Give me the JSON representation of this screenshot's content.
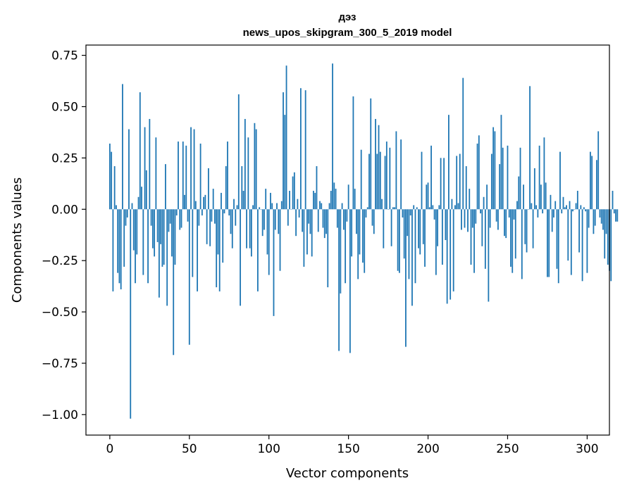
{
  "chart_data": {
    "type": "bar",
    "title_lines": [
      "дэз",
      "news_upos_skipgram_300_5_2019 model"
    ],
    "xlabel": "Vector components",
    "ylabel": "Components values",
    "xlim": [
      -15,
      314
    ],
    "ylim": [
      -1.1,
      0.8
    ],
    "x_ticks": [
      0,
      50,
      100,
      150,
      200,
      250,
      300
    ],
    "x_tick_labels": [
      "0",
      "50",
      "100",
      "150",
      "200",
      "250",
      "300"
    ],
    "y_ticks": [
      0.75,
      0.5,
      0.25,
      0.0,
      -0.25,
      -0.5,
      -0.75,
      -1.0
    ],
    "y_tick_labels": [
      "0.75",
      "0.50",
      "0.25",
      "0.00",
      "−0.25",
      "−0.50",
      "−0.75",
      "−1.00"
    ],
    "bar_color": "#1f77b4",
    "grid": false,
    "series": [
      {
        "x_start": 0,
        "values": [
          0.32,
          0.28,
          -0.4,
          0.21,
          0.02,
          -0.31,
          -0.36,
          -0.39,
          0.61,
          -0.28,
          -0.08,
          -0.04,
          0.39,
          -1.02,
          0.03,
          -0.2,
          -0.36,
          -0.22,
          0.06,
          0.57,
          0.11,
          -0.32,
          0.4,
          0.19,
          -0.36,
          0.44,
          -0.08,
          -0.19,
          -0.23,
          0.35,
          -0.16,
          -0.43,
          -0.17,
          -0.28,
          -0.27,
          0.22,
          -0.47,
          -0.11,
          -0.07,
          -0.23,
          -0.71,
          -0.27,
          -0.03,
          0.33,
          -0.1,
          -0.09,
          0.33,
          0.07,
          0.31,
          -0.06,
          -0.66,
          0.4,
          -0.33,
          0.39,
          0.04,
          -0.4,
          -0.08,
          0.32,
          -0.03,
          0.06,
          0.07,
          -0.17,
          0.2,
          -0.18,
          -0.06,
          0.1,
          -0.07,
          -0.38,
          -0.22,
          -0.4,
          0.08,
          -0.26,
          -0.02,
          0.21,
          0.33,
          -0.03,
          -0.12,
          -0.19,
          0.05,
          -0.08,
          0.02,
          0.56,
          -0.47,
          0.21,
          0.09,
          0.44,
          -0.19,
          0.35,
          -0.19,
          -0.23,
          0.02,
          0.42,
          0.39,
          -0.4,
          0.01,
          0.0,
          -0.13,
          -0.1,
          0.1,
          -0.22,
          -0.32,
          0.08,
          0.03,
          -0.52,
          -0.1,
          0.03,
          -0.12,
          -0.3,
          0.04,
          0.57,
          0.46,
          0.7,
          -0.08,
          0.09,
          0.0,
          0.16,
          0.18,
          -0.13,
          0.05,
          -0.04,
          0.59,
          -0.11,
          -0.28,
          0.58,
          -0.22,
          -0.07,
          -0.12,
          -0.23,
          0.09,
          0.08,
          0.21,
          -0.11,
          0.04,
          0.03,
          -0.09,
          -0.14,
          -0.12,
          -0.38,
          0.03,
          0.09,
          0.71,
          0.13,
          0.1,
          -0.09,
          -0.69,
          -0.41,
          0.03,
          -0.1,
          -0.36,
          -0.06,
          0.12,
          -0.7,
          -0.23,
          0.55,
          0.1,
          -0.12,
          -0.34,
          -0.22,
          0.29,
          -0.26,
          -0.31,
          -0.04,
          0.01,
          0.27,
          0.54,
          -0.08,
          -0.12,
          0.44,
          0.27,
          0.41,
          0.28,
          0.05,
          -0.19,
          0.26,
          0.33,
          0.0,
          0.3,
          -0.18,
          0.01,
          0.01,
          0.38,
          -0.3,
          -0.31,
          0.34,
          -0.04,
          -0.24,
          -0.67,
          -0.13,
          -0.34,
          -0.03,
          -0.47,
          0.02,
          -0.36,
          0.01,
          -0.19,
          -0.22,
          0.28,
          -0.17,
          -0.28,
          0.12,
          0.13,
          0.01,
          0.31,
          0.02,
          -0.05,
          -0.32,
          -0.18,
          0.02,
          0.25,
          -0.27,
          0.25,
          -0.15,
          -0.46,
          0.46,
          -0.44,
          0.05,
          -0.4,
          0.02,
          0.26,
          0.03,
          0.27,
          -0.1,
          0.64,
          -0.09,
          0.21,
          -0.11,
          0.1,
          -0.27,
          -0.09,
          -0.31,
          -0.07,
          0.32,
          0.36,
          -0.02,
          -0.18,
          0.06,
          -0.29,
          0.12,
          -0.45,
          -0.09,
          0.27,
          0.4,
          0.38,
          -0.06,
          -0.1,
          0.22,
          0.46,
          0.3,
          -0.13,
          -0.14,
          0.31,
          -0.04,
          -0.28,
          -0.31,
          -0.05,
          -0.24,
          0.04,
          0.16,
          0.3,
          -0.34,
          0.12,
          -0.17,
          -0.21,
          0.0,
          0.6,
          0.03,
          -0.19,
          0.2,
          0.02,
          -0.04,
          0.31,
          0.12,
          -0.02,
          0.35,
          0.13,
          -0.33,
          -0.33,
          0.07,
          -0.11,
          -0.04,
          0.04,
          -0.29,
          -0.36,
          0.28,
          -0.02,
          0.06,
          0.01,
          0.02,
          -0.25,
          0.04,
          -0.32,
          -0.01,
          0.0,
          0.03,
          0.09,
          -0.21,
          0.02,
          -0.35,
          0.01,
          -0.01,
          -0.31,
          -0.09,
          0.28,
          0.26,
          -0.12,
          -0.08,
          0.24,
          0.38,
          -0.04,
          -0.07,
          -0.1,
          -0.24,
          -0.12,
          -0.27,
          -0.3,
          -0.35,
          0.09,
          -0.02,
          -0.06,
          -0.06
        ]
      }
    ]
  }
}
